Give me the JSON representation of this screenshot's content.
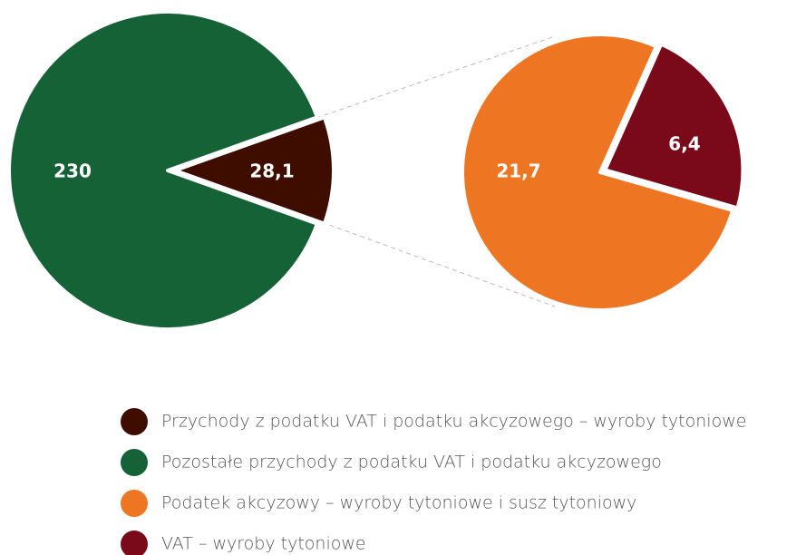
{
  "chart_data": [
    {
      "type": "pie",
      "categories": [
        "Przychody z podatku VAT i podatku akcyzowego – wyroby tytoniowe",
        "Pozostałe przychody z podatku VAT i podatku akcyzowego"
      ],
      "values": [
        28.1,
        230
      ],
      "value_labels": [
        "28,1",
        "230"
      ],
      "colors": [
        "#3e0d00",
        "#156236"
      ]
    },
    {
      "type": "pie",
      "categories": [
        "Podatek akcyzowy – wyroby tytoniowe i susz tytoniowy",
        "VAT – wyroby tytoniowe"
      ],
      "values": [
        21.7,
        6.4
      ],
      "value_labels": [
        "21,7",
        "6,4"
      ],
      "colors": [
        "#ee7623",
        "#7a0a1a"
      ]
    }
  ]
}
